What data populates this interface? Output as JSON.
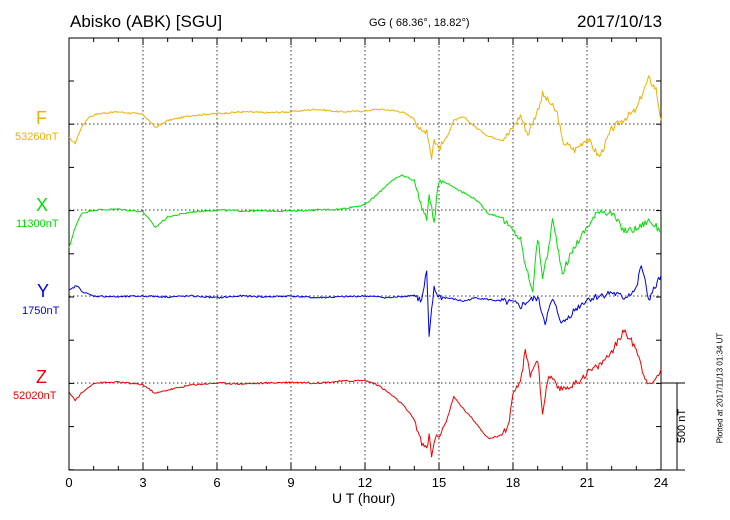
{
  "header": {
    "station": "Abisko (ABK)  [SGU]",
    "coords": "GG ( 68.36°,  18.82°)",
    "date": "2017/10/13"
  },
  "footer": {
    "plotted": "Plotted at 2017/11/13 01:34  UT"
  },
  "colors": {
    "F": "#f0b000",
    "X": "#00dd00",
    "Y": "#0000dd",
    "Z": "#ee0000",
    "grid": "#000000"
  },
  "chart_data": {
    "type": "line",
    "xlabel": "U T (hour)",
    "xlim": [
      0,
      24
    ],
    "xticks": [
      "0",
      "3",
      "6",
      "9",
      "12",
      "15",
      "18",
      "21",
      "24"
    ],
    "ylim_nT_relative": [
      -750,
      1250
    ],
    "scale_bar": "500 nT",
    "series": [
      {
        "name": "F",
        "baseline": "53260nT",
        "color": "#f0b000",
        "x": [
          0,
          0.25,
          0.5,
          0.8,
          1.2,
          2,
          3,
          3.5,
          4,
          5,
          6,
          7,
          8,
          9,
          10,
          11,
          12,
          12.5,
          13,
          13.5,
          14,
          14.3,
          14.5,
          14.6,
          14.7,
          14.8,
          15,
          15.3,
          15.6,
          16,
          16.5,
          17,
          17.5,
          17.8,
          18,
          18.3,
          18.6,
          19,
          19.2,
          19.5,
          19.8,
          20,
          20.5,
          21,
          21.5,
          22,
          22.5,
          23,
          23.2,
          23.5,
          23.8,
          24
        ],
        "y": [
          -80,
          -110,
          -20,
          40,
          60,
          70,
          55,
          -20,
          20,
          50,
          60,
          70,
          65,
          70,
          85,
          70,
          75,
          85,
          80,
          70,
          30,
          -50,
          -30,
          -110,
          -190,
          -90,
          -140,
          -80,
          20,
          40,
          -20,
          -70,
          -90,
          -60,
          -20,
          50,
          -60,
          80,
          170,
          120,
          60,
          -100,
          -150,
          -80,
          -190,
          -30,
          30,
          80,
          160,
          260,
          200,
          20
        ]
      },
      {
        "name": "X",
        "baseline": "11300nT",
        "color": "#00dd00",
        "x": [
          0,
          0.2,
          0.5,
          1,
          2,
          3,
          3.5,
          4,
          5,
          6,
          7,
          8,
          9,
          10,
          11,
          12,
          12.5,
          13,
          13.5,
          14,
          14.3,
          14.5,
          14.6,
          14.8,
          15,
          15.5,
          16,
          16.5,
          17,
          17.5,
          17.8,
          18,
          18.3,
          18.5,
          18.8,
          19,
          19.2,
          19.4,
          19.6,
          19.8,
          20,
          20.5,
          21,
          21.5,
          22,
          22.5,
          23,
          23.5,
          24
        ],
        "y": [
          -220,
          -120,
          -20,
          0,
          5,
          -10,
          -100,
          -40,
          -10,
          0,
          -5,
          -5,
          -5,
          0,
          5,
          30,
          90,
          160,
          200,
          170,
          20,
          -60,
          100,
          -80,
          180,
          140,
          100,
          60,
          -20,
          -40,
          -90,
          -120,
          -170,
          -320,
          -460,
          -160,
          -380,
          -260,
          -60,
          -200,
          -360,
          -210,
          -100,
          0,
          -20,
          -120,
          -110,
          -60,
          -120
        ]
      },
      {
        "name": "Y",
        "baseline": "1750nT",
        "color": "#0000dd",
        "x": [
          0,
          0.3,
          0.6,
          1,
          2,
          3,
          4,
          5,
          6,
          7,
          8,
          9,
          10,
          11,
          12,
          13,
          14,
          14.3,
          14.5,
          14.6,
          14.7,
          14.8,
          15,
          15.5,
          16,
          16.5,
          17,
          17.5,
          18,
          18.3,
          18.6,
          19,
          19.3,
          19.6,
          20,
          20.5,
          21,
          21.5,
          22,
          22.5,
          23,
          23.2,
          23.5,
          23.8,
          24
        ],
        "y": [
          30,
          60,
          20,
          0,
          -5,
          0,
          -5,
          0,
          -10,
          0,
          -5,
          0,
          -10,
          -5,
          0,
          -10,
          5,
          -30,
          140,
          -250,
          -80,
          40,
          -5,
          -15,
          -30,
          -10,
          -20,
          -30,
          -40,
          -60,
          -30,
          -10,
          -150,
          -20,
          -160,
          -80,
          -20,
          0,
          20,
          -10,
          40,
          180,
          -20,
          60,
          120
        ]
      },
      {
        "name": "Z",
        "baseline": "52020nT",
        "color": "#ee0000",
        "x": [
          0,
          0.25,
          0.5,
          1,
          2,
          3,
          3.5,
          4,
          5,
          6,
          7,
          8,
          9,
          10,
          11,
          12,
          12.5,
          13,
          13.5,
          14,
          14.3,
          14.5,
          14.6,
          14.7,
          14.8,
          15,
          15.3,
          15.6,
          16,
          16.5,
          17,
          17.5,
          17.8,
          18,
          18.3,
          18.5,
          18.7,
          19,
          19.2,
          19.4,
          19.6,
          19.8,
          20,
          20.3,
          20.6,
          21,
          21.5,
          22,
          22.5,
          23,
          23.3,
          23.6,
          24
        ],
        "y": [
          -50,
          -100,
          -60,
          0,
          5,
          -10,
          -60,
          -40,
          -10,
          0,
          -5,
          0,
          5,
          0,
          10,
          15,
          -10,
          -60,
          -120,
          -210,
          -350,
          -380,
          -300,
          -420,
          -330,
          -300,
          -220,
          -80,
          -150,
          -230,
          -320,
          -300,
          -250,
          -80,
          10,
          180,
          50,
          140,
          -180,
          20,
          30,
          -40,
          -30,
          -20,
          0,
          60,
          100,
          180,
          300,
          200,
          50,
          -20,
          80
        ]
      }
    ]
  }
}
